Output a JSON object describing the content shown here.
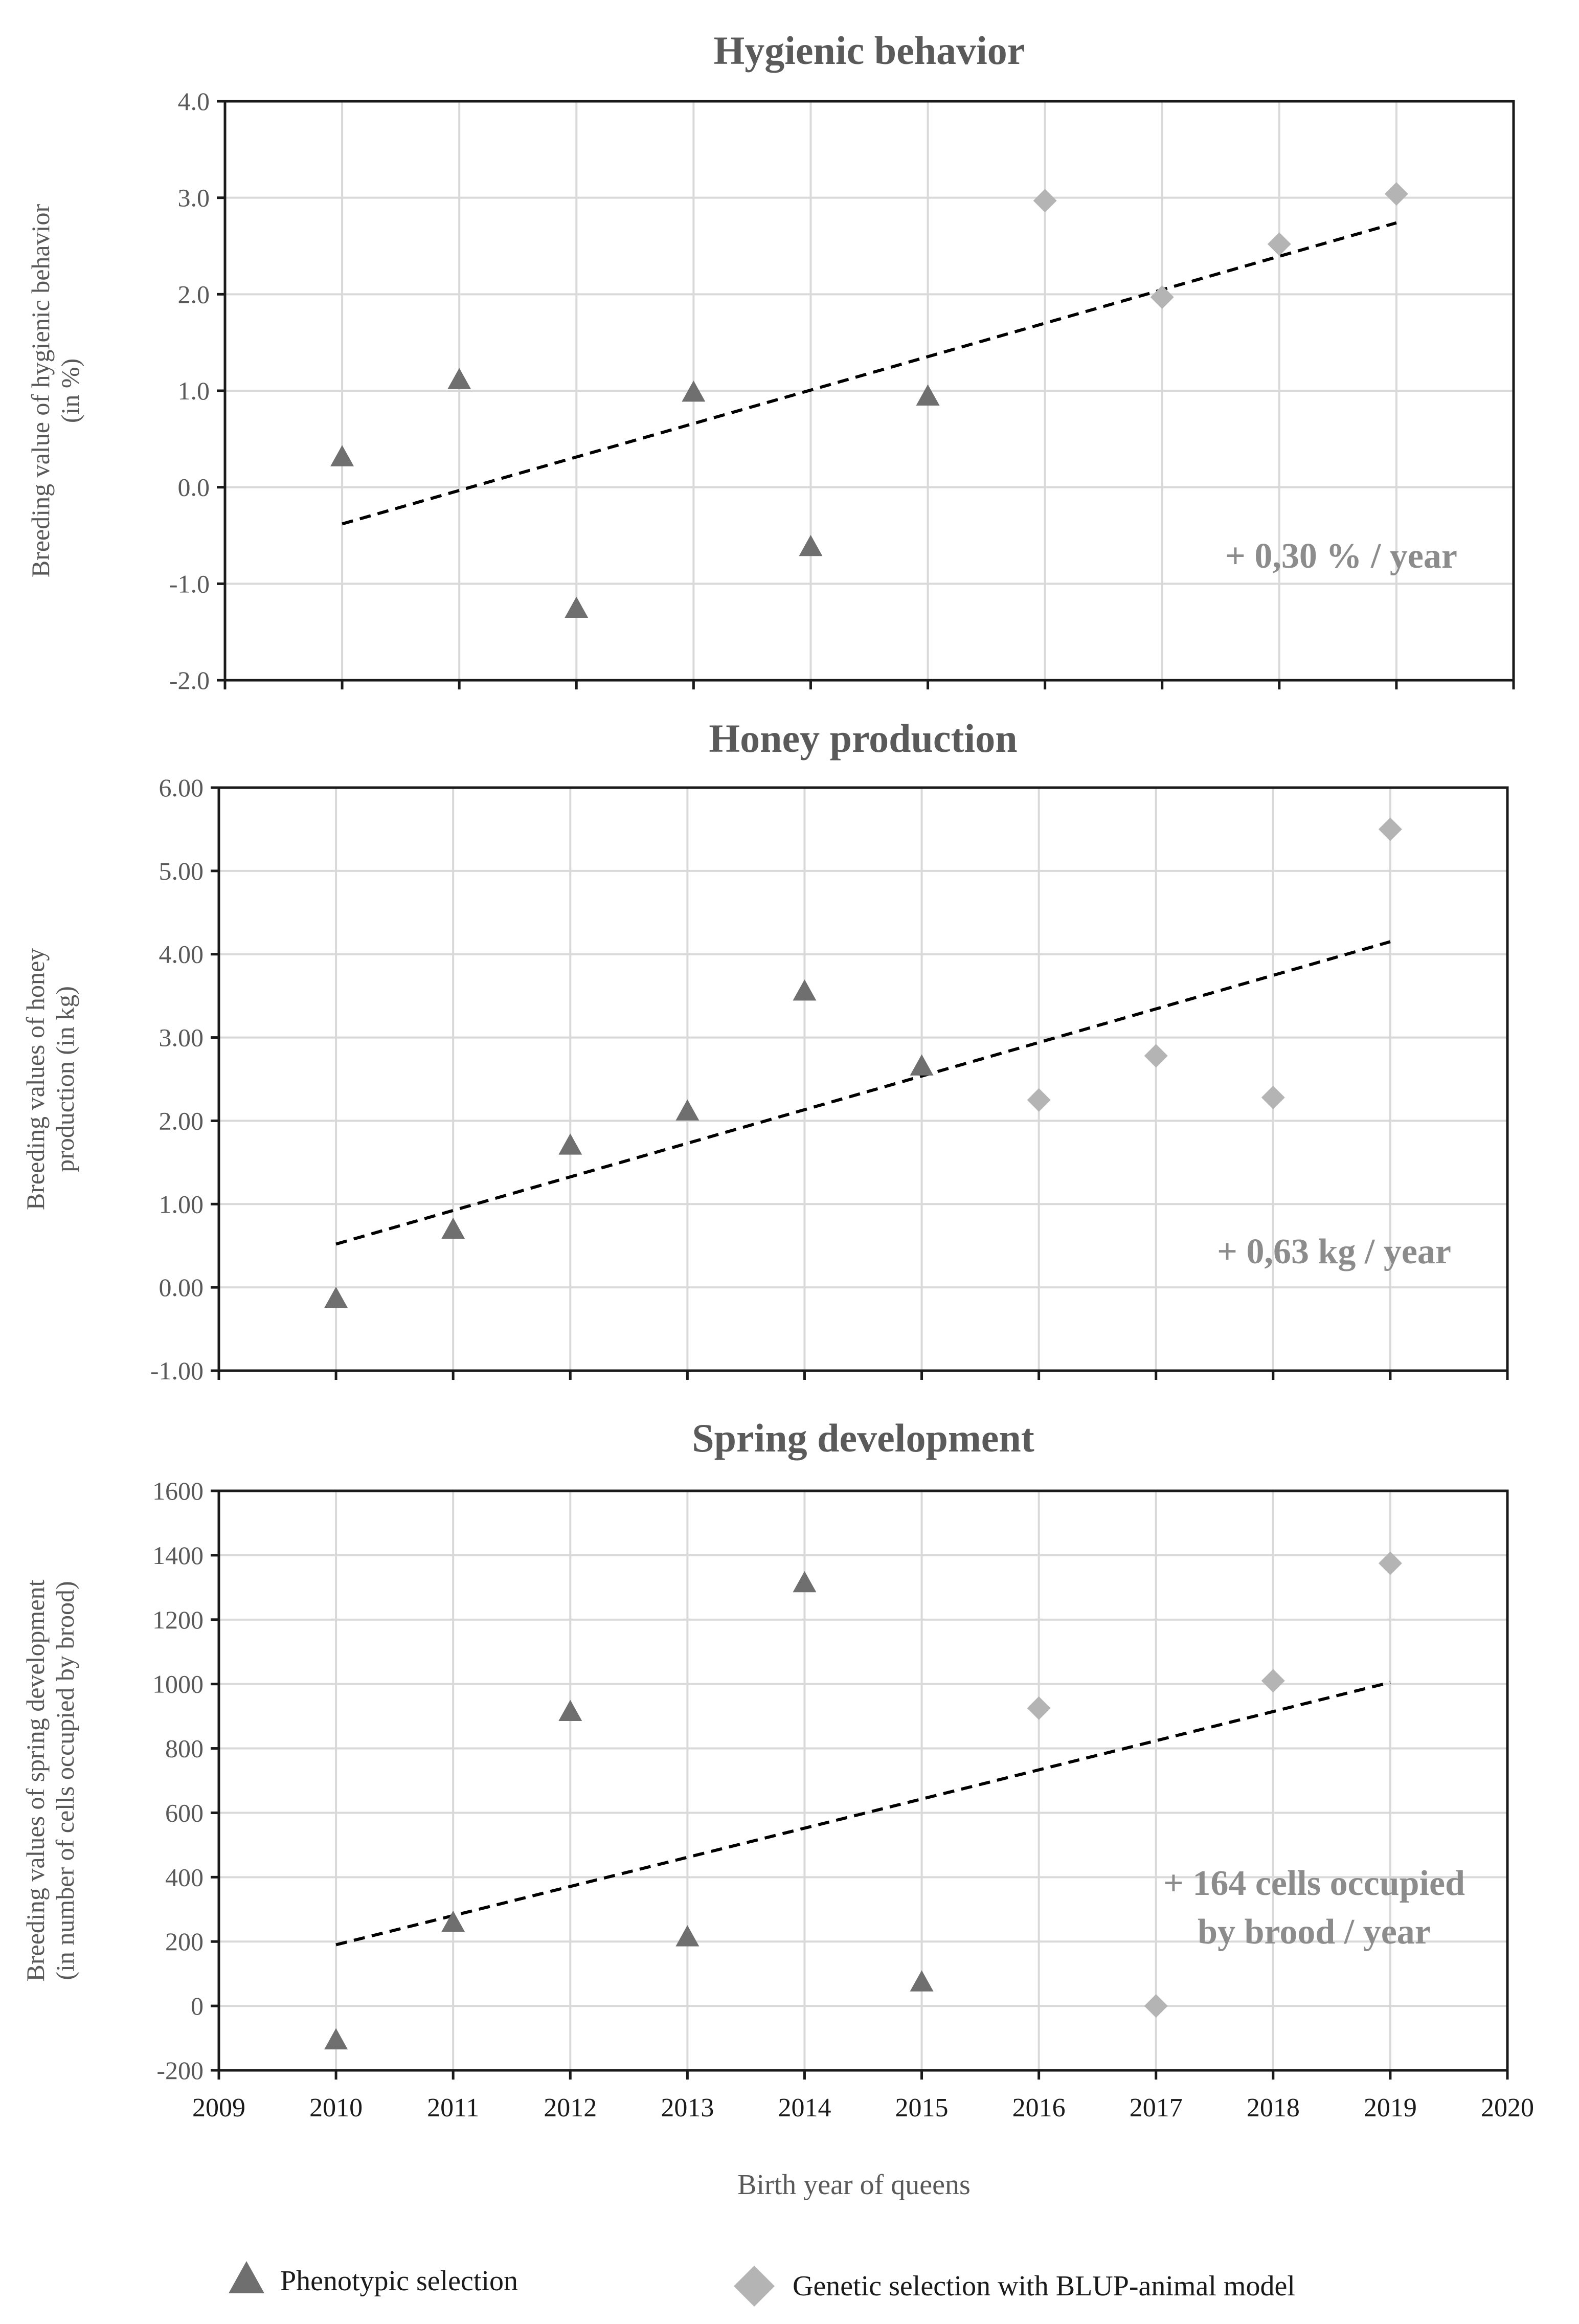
{
  "colors": {
    "phenotypic": "#6f6f6f",
    "genetic": "#b4b4b4",
    "title": "#5a5a5a",
    "text": "#595959",
    "grid": "#d9d9d9",
    "axis": "#1a1a1a",
    "annotation": "#8c8c8c",
    "trend": "#000000"
  },
  "shared": {
    "xlabel": "Birth year of queens",
    "x_domain": [
      2009,
      2020
    ],
    "x_ticks": [
      2009,
      2010,
      2011,
      2012,
      2013,
      2014,
      2015,
      2016,
      2017,
      2018,
      2019,
      2020
    ],
    "x_tick_labels": [
      "2009",
      "2010",
      "2011",
      "2012",
      "2013",
      "2014",
      "2015",
      "2016",
      "2017",
      "2018",
      "2019",
      "2020"
    ]
  },
  "legend": {
    "items": [
      {
        "label": "Phenotypic selection",
        "marker": "triangle",
        "series": "phenotypic"
      },
      {
        "label": "Genetic selection with BLUP-animal model",
        "marker": "diamond",
        "series": "genetic"
      }
    ]
  },
  "chart_data": [
    {
      "type": "scatter",
      "title": "Hygienic behavior",
      "ylabel": [
        "Breeding value of hygienic behavior",
        "(in %)"
      ],
      "xlabel": "Birth year of queens",
      "ylim": [
        -2.0,
        4.0
      ],
      "y_ticks": [
        -2.0,
        -1.0,
        0.0,
        1.0,
        2.0,
        3.0,
        4.0
      ],
      "y_tick_labels": [
        "-2.0",
        "-1.0",
        "0.0",
        "1.0",
        "2.0",
        "3.0",
        "4.0"
      ],
      "grid": true,
      "series": [
        {
          "name": "Phenotypic selection",
          "key": "phenotypic",
          "marker": "triangle",
          "x": [
            2010,
            2011,
            2012,
            2013,
            2014,
            2015
          ],
          "y": [
            0.3,
            1.1,
            -1.27,
            0.97,
            -0.63,
            0.93
          ]
        },
        {
          "name": "Genetic selection with BLUP-animal model",
          "key": "genetic",
          "marker": "diamond",
          "x": [
            2016,
            2017,
            2018,
            2019
          ],
          "y": [
            2.97,
            1.97,
            2.52,
            3.04
          ]
        }
      ],
      "trend": {
        "x": [
          2010,
          2019
        ],
        "y": [
          -0.38,
          2.74
        ]
      },
      "annotation": [
        "+ 0,30 % / year"
      ]
    },
    {
      "type": "scatter",
      "title": "Honey production",
      "ylabel": [
        "Breeding values of honey",
        "production (in kg)"
      ],
      "xlabel": "Birth year of queens",
      "ylim": [
        -1.0,
        6.0
      ],
      "y_ticks": [
        -1.0,
        0.0,
        1.0,
        2.0,
        3.0,
        4.0,
        5.0,
        6.0
      ],
      "y_tick_labels": [
        "-1.00",
        "0.00",
        "1.00",
        "2.00",
        "3.00",
        "4.00",
        "5.00",
        "6.00"
      ],
      "grid": true,
      "series": [
        {
          "name": "Phenotypic selection",
          "key": "phenotypic",
          "marker": "triangle",
          "x": [
            2010,
            2011,
            2012,
            2013,
            2014,
            2015
          ],
          "y": [
            -0.15,
            0.68,
            1.69,
            2.1,
            3.54,
            2.64
          ]
        },
        {
          "name": "Genetic selection with BLUP-animal model",
          "key": "genetic",
          "marker": "diamond",
          "x": [
            2016,
            2017,
            2018,
            2019
          ],
          "y": [
            2.25,
            2.78,
            2.28,
            5.5
          ]
        }
      ],
      "trend": {
        "x": [
          2010,
          2019
        ],
        "y": [
          0.52,
          4.15
        ]
      },
      "annotation": [
        "+ 0,63 kg / year"
      ]
    },
    {
      "type": "scatter",
      "title": "Spring development",
      "ylabel": [
        "Breeding values of spring development",
        "(in number of cells occupied by brood)"
      ],
      "xlabel": "Birth year of queens",
      "ylim": [
        -200,
        1600
      ],
      "y_ticks": [
        -200,
        0,
        200,
        400,
        600,
        800,
        1000,
        1200,
        1400,
        1600
      ],
      "y_tick_labels": [
        "-200",
        "0",
        "200",
        "400",
        "600",
        "800",
        "1000",
        "1200",
        "1400",
        "1600"
      ],
      "grid": true,
      "series": [
        {
          "name": "Phenotypic selection",
          "key": "phenotypic",
          "marker": "triangle",
          "x": [
            2010,
            2011,
            2012,
            2013,
            2014,
            2015
          ],
          "y": [
            -110,
            255,
            910,
            210,
            1310,
            70
          ]
        },
        {
          "name": "Genetic selection with BLUP-animal model",
          "key": "genetic",
          "marker": "diamond",
          "x": [
            2016,
            2017,
            2018,
            2019
          ],
          "y": [
            925,
            0,
            1010,
            1375
          ]
        }
      ],
      "trend": {
        "x": [
          2010,
          2019
        ],
        "y": [
          190,
          1005
        ]
      },
      "annotation": [
        "+ 164 cells occupied",
        "by brood / year"
      ]
    }
  ]
}
